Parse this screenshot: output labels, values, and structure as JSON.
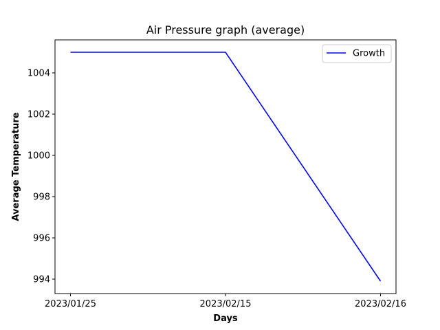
{
  "chart_data": {
    "type": "line",
    "title": "Air Pressure graph (average)",
    "xlabel": "Days",
    "ylabel": "Average Temperature",
    "categories": [
      "2023/01/25",
      "2023/02/15",
      "2023/02/16"
    ],
    "series": [
      {
        "name": "Growth",
        "color": "#0000ff",
        "values": [
          1005,
          1005,
          993.9
        ]
      }
    ],
    "ylim": [
      993.3,
      1005.6
    ],
    "yticks": [
      994,
      996,
      998,
      1000,
      1002,
      1004
    ],
    "legend": "top-right",
    "grid": false
  }
}
